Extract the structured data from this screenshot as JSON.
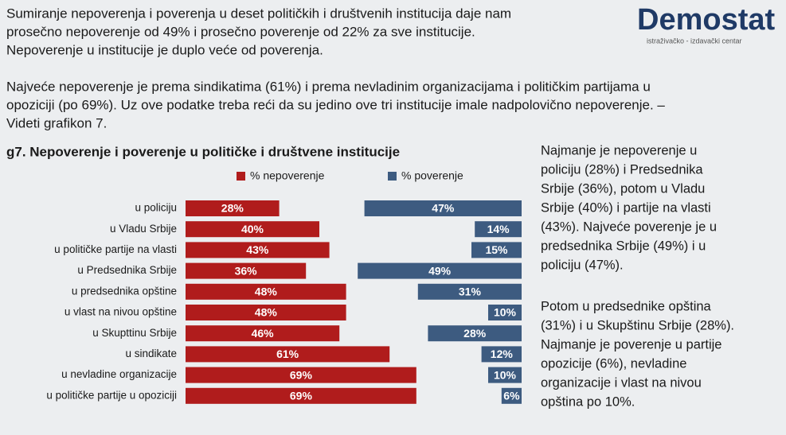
{
  "intro": [
    [
      "Sumiranje nepoverenja i poverenja u deset političkih i društvenih institucija daje nam",
      "prosečno nepoverenje od 49% i prosečno poverenje od 22% za sve institucije.",
      "Nepoverenje u institucije je duplo veće od poverenja."
    ],
    [
      "Najveće nepoverenje je prema sindikatima (61%) i prema nevladinim organizacijama i političkim partijama u",
      "opoziciji (po 69%). Uz ove podatke treba reći da su jedino ove tri institucije imale nadpolovično nepoverenje. –",
      "Videti grafikon 7."
    ]
  ],
  "logo": {
    "name": "Demostat",
    "tagline": "istraživačko - izdavački centar"
  },
  "chart_data": {
    "type": "bar",
    "title": "g7. Nepoverenje i poverenje u političke i društvene institucije",
    "categories": [
      "u policiju",
      "u Vladu Srbije",
      "u političke partije na vlasti",
      "u Predsednika Srbije",
      "u predsednika opštine",
      "u vlast na nivou opštine",
      "u Skupttinu Srbije",
      "u sindikate",
      "u nevladine organizacije",
      "u političke partije u opoziciji"
    ],
    "series": [
      {
        "name": "% nepoverenje",
        "color": "#b01c1c",
        "values": [
          28,
          40,
          43,
          36,
          48,
          48,
          46,
          61,
          69,
          69
        ],
        "value_labels": [
          "28%",
          "40%",
          "43%",
          "36%",
          "48%",
          "48%",
          "46%",
          "61%",
          "69%",
          "69%"
        ]
      },
      {
        "name": "% poverenje",
        "color": "#3d5b80",
        "values": [
          47,
          14,
          15,
          49,
          31,
          10,
          28,
          12,
          10,
          6
        ],
        "value_labels": [
          "47%",
          "14%",
          "15%",
          "49%",
          "31%",
          "10%",
          "28%",
          "12%",
          "10%",
          "6%"
        ]
      }
    ]
  },
  "side_notes": [
    [
      "Najmanje je nepoverenje u",
      "policiju (28%) i Predsednika",
      "Srbije (36%), potom u Vladu",
      "Srbije (40%) i partije na vlasti",
      "(43%). Najveće poverenje je u",
      "predsednika Srbije (49%) i u",
      "policiju (47%)."
    ],
    [
      "Potom u predsednike opština",
      "(31%) i u Skupštinu Srbije (28%).",
      "Najmanje je poverenje u partije",
      "opozicije (6%), nevladine",
      "organizacije i vlast na nivou",
      "opština po 10%."
    ]
  ]
}
